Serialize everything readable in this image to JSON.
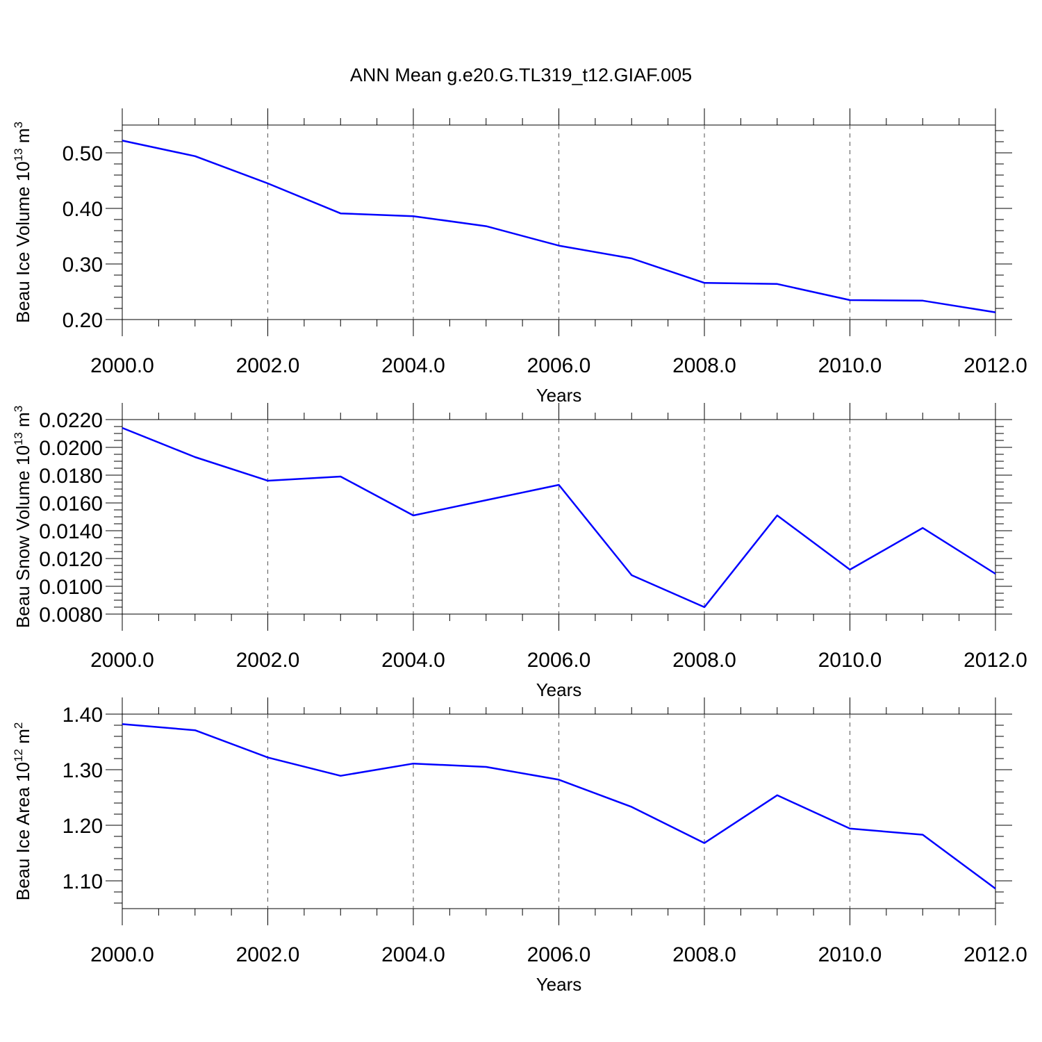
{
  "figure_title": "ANN Mean g.e20.G.TL319_t12.GIAF.005",
  "chart_data": [
    {
      "type": "line",
      "ylabel": {
        "base": "Beau Ice Volume 10",
        "exp": "13",
        "unit": " m",
        "unit_exp": "3"
      },
      "xlabel": "Years",
      "xlim": [
        2000,
        2012
      ],
      "ylim": [
        0.2,
        0.55
      ],
      "x_ticks": [
        "2000.0",
        "2002.0",
        "2004.0",
        "2006.0",
        "2008.0",
        "2010.0",
        "2012.0"
      ],
      "y_ticks": [
        "0.20",
        "0.30",
        "0.40",
        "0.50"
      ],
      "series": [
        {
          "name": "Beau Ice Volume",
          "color": "#0000ff",
          "x": [
            2000,
            2001,
            2002,
            2003,
            2004,
            2005,
            2006,
            2007,
            2008,
            2009,
            2010,
            2011,
            2012
          ],
          "values": [
            0.522,
            0.494,
            0.445,
            0.391,
            0.386,
            0.368,
            0.333,
            0.31,
            0.266,
            0.264,
            0.235,
            0.234,
            0.213
          ]
        }
      ]
    },
    {
      "type": "line",
      "ylabel": {
        "base": "Beau Snow Volume 10",
        "exp": "13",
        "unit": " m",
        "unit_exp": "3"
      },
      "xlabel": "Years",
      "xlim": [
        2000,
        2012
      ],
      "ylim": [
        0.008,
        0.022
      ],
      "x_ticks": [
        "2000.0",
        "2002.0",
        "2004.0",
        "2006.0",
        "2008.0",
        "2010.0",
        "2012.0"
      ],
      "y_ticks": [
        "0.0080",
        "0.0100",
        "0.0120",
        "0.0140",
        "0.0160",
        "0.0180",
        "0.0200",
        "0.0220"
      ],
      "series": [
        {
          "name": "Beau Snow Volume",
          "color": "#0000ff",
          "x": [
            2000,
            2001,
            2002,
            2003,
            2004,
            2005,
            2006,
            2007,
            2008,
            2009,
            2010,
            2011,
            2012
          ],
          "values": [
            0.0214,
            0.0193,
            0.0176,
            0.0179,
            0.0151,
            0.0162,
            0.0173,
            0.0108,
            0.0085,
            0.0151,
            0.0112,
            0.0142,
            0.0109
          ]
        }
      ]
    },
    {
      "type": "line",
      "ylabel": {
        "base": "Beau Ice Area 10",
        "exp": "12",
        "unit": " m",
        "unit_exp": "2"
      },
      "xlabel": "Years",
      "xlim": [
        2000,
        2012
      ],
      "ylim": [
        1.05,
        1.4
      ],
      "x_ticks": [
        "2000.0",
        "2002.0",
        "2004.0",
        "2006.0",
        "2008.0",
        "2010.0",
        "2012.0"
      ],
      "y_ticks": [
        "1.10",
        "1.20",
        "1.30",
        "1.40"
      ],
      "series": [
        {
          "name": "Beau Ice Area",
          "color": "#0000ff",
          "x": [
            2000,
            2001,
            2002,
            2003,
            2004,
            2005,
            2006,
            2007,
            2008,
            2009,
            2010,
            2011,
            2012
          ],
          "values": [
            1.382,
            1.371,
            1.322,
            1.289,
            1.311,
            1.305,
            1.282,
            1.233,
            1.168,
            1.254,
            1.194,
            1.183,
            1.086
          ]
        }
      ]
    }
  ]
}
